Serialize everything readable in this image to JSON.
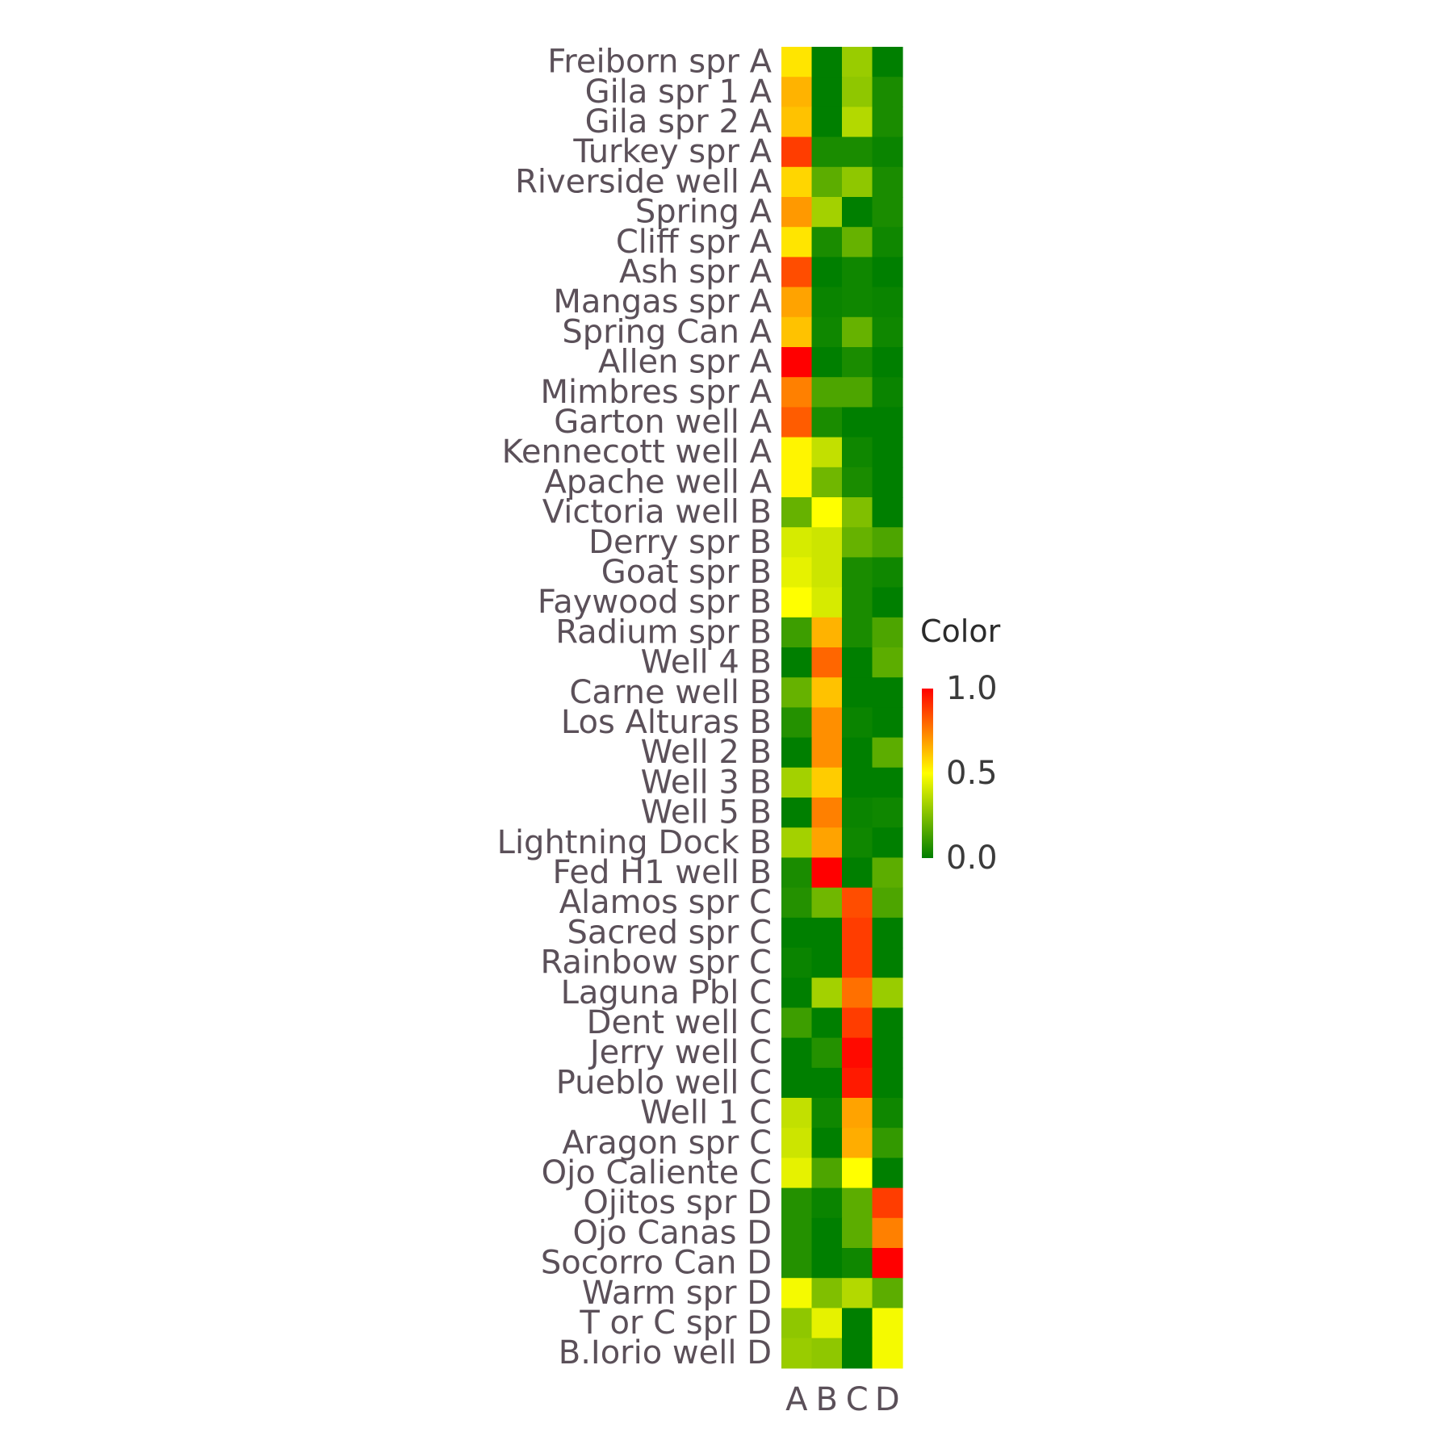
{
  "chart_data": {
    "type": "heatmap",
    "columns": [
      "A",
      "B",
      "C",
      "D"
    ],
    "rows": [
      "Freiborn spr A",
      "Gila spr 1 A",
      "Gila spr 2 A",
      "Turkey spr A",
      "Riverside well A",
      "Spring A",
      "Cliff spr A",
      "Ash spr A",
      "Mangas spr A",
      "Spring Can A",
      "Allen spr A",
      "Mimbres spr A",
      "Garton well A",
      "Kennecott well A",
      "Apache well A",
      "Victoria well B",
      "Derry spr B",
      "Goat spr B",
      "Faywood spr B",
      "Radium spr B",
      "Well 4 B",
      "Carne well B",
      "Los Alturas B",
      "Well 2 B",
      "Well 3 B",
      "Well 5 B",
      "Lightning Dock B",
      "Fed H1 well B",
      "Alamos spr C",
      "Sacred spr C",
      "Rainbow spr C",
      "Laguna Pbl C",
      "Dent well C",
      "Jerry well C",
      "Pueblo well C",
      "Well 1 C",
      "Aragon spr C",
      "Ojo Caliente C",
      "Ojitos spr D",
      "Ojo Canas D",
      "Socorro Can D",
      "Warm spr D",
      "T or C spr D",
      "B.Iorio well D"
    ],
    "values": [
      [
        0.55,
        0.0,
        0.3,
        0.0
      ],
      [
        0.65,
        0.0,
        0.28,
        0.05
      ],
      [
        0.62,
        0.0,
        0.35,
        0.05
      ],
      [
        0.88,
        0.05,
        0.05,
        0.02
      ],
      [
        0.58,
        0.18,
        0.28,
        0.05
      ],
      [
        0.7,
        0.32,
        0.0,
        0.05
      ],
      [
        0.55,
        0.05,
        0.2,
        0.03
      ],
      [
        0.85,
        0.0,
        0.03,
        0.0
      ],
      [
        0.68,
        0.02,
        0.03,
        0.02
      ],
      [
        0.62,
        0.03,
        0.2,
        0.03
      ],
      [
        1.0,
        0.0,
        0.05,
        0.0
      ],
      [
        0.75,
        0.15,
        0.15,
        0.02
      ],
      [
        0.82,
        0.05,
        0.0,
        0.0
      ],
      [
        0.52,
        0.38,
        0.03,
        0.0
      ],
      [
        0.52,
        0.22,
        0.05,
        0.0
      ],
      [
        0.2,
        0.5,
        0.25,
        0.0
      ],
      [
        0.42,
        0.4,
        0.2,
        0.15
      ],
      [
        0.45,
        0.4,
        0.05,
        0.03
      ],
      [
        0.5,
        0.42,
        0.05,
        0.0
      ],
      [
        0.12,
        0.65,
        0.05,
        0.15
      ],
      [
        0.0,
        0.8,
        0.0,
        0.18
      ],
      [
        0.2,
        0.62,
        0.0,
        0.0
      ],
      [
        0.07,
        0.72,
        0.02,
        0.0
      ],
      [
        0.0,
        0.72,
        0.0,
        0.18
      ],
      [
        0.32,
        0.6,
        0.0,
        0.0
      ],
      [
        0.0,
        0.75,
        0.02,
        0.03
      ],
      [
        0.32,
        0.68,
        0.03,
        0.0
      ],
      [
        0.05,
        1.0,
        0.0,
        0.18
      ],
      [
        0.07,
        0.22,
        0.85,
        0.15
      ],
      [
        0.0,
        0.0,
        0.88,
        0.0
      ],
      [
        0.02,
        0.0,
        0.88,
        0.0
      ],
      [
        0.0,
        0.32,
        0.78,
        0.3
      ],
      [
        0.12,
        0.0,
        0.88,
        0.0
      ],
      [
        0.0,
        0.07,
        0.98,
        0.0
      ],
      [
        0.0,
        0.0,
        0.95,
        0.0
      ],
      [
        0.38,
        0.03,
        0.68,
        0.03
      ],
      [
        0.4,
        0.0,
        0.66,
        0.1
      ],
      [
        0.45,
        0.15,
        0.5,
        0.0
      ],
      [
        0.07,
        0.02,
        0.18,
        0.88
      ],
      [
        0.07,
        0.0,
        0.18,
        0.75
      ],
      [
        0.07,
        0.0,
        0.03,
        1.0
      ],
      [
        0.48,
        0.25,
        0.35,
        0.18
      ],
      [
        0.28,
        0.45,
        0.0,
        0.48
      ],
      [
        0.3,
        0.28,
        0.0,
        0.48
      ]
    ],
    "legend": {
      "title": "Color",
      "ticks": [
        "0.0",
        "0.5",
        "1.0"
      ],
      "tick_values": [
        0.0,
        0.5,
        1.0
      ],
      "range": [
        0,
        1
      ]
    },
    "colors": {
      "low": "#007f00",
      "mid": "#ffff00",
      "high": "#ff0000"
    }
  }
}
